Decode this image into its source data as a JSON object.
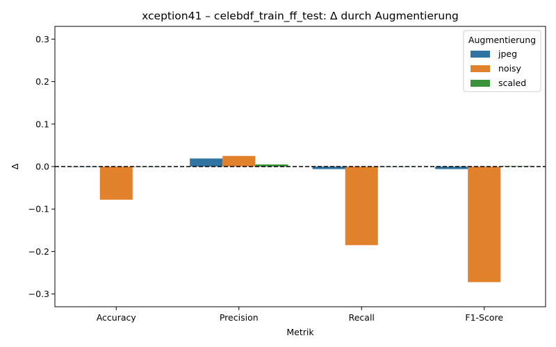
{
  "chart_data": {
    "type": "bar",
    "title": "xception41 – celebdf_train_ff_test: Δ durch Augmentierung",
    "xlabel": "Metrik",
    "ylabel": "Δ",
    "ylim": [
      -0.33,
      0.33
    ],
    "yticks": [
      -0.3,
      -0.2,
      -0.1,
      0.0,
      0.1,
      0.2,
      0.3
    ],
    "ytick_labels": [
      "−0.3",
      "−0.2",
      "−0.1",
      "0.0",
      "0.1",
      "0.2",
      "0.3"
    ],
    "categories": [
      "Accuracy",
      "Precision",
      "Recall",
      "F1-Score"
    ],
    "legend_title": "Augmentierung",
    "legend_position": "top-right",
    "reference_line": 0,
    "series": [
      {
        "name": "jpeg",
        "color": "#3274a1",
        "values": [
          0.0,
          0.019,
          -0.006,
          -0.006
        ]
      },
      {
        "name": "noisy",
        "color": "#e1812c",
        "values": [
          -0.078,
          0.025,
          -0.185,
          -0.272
        ]
      },
      {
        "name": "scaled",
        "color": "#3a923a",
        "values": [
          0.0,
          0.005,
          0.0,
          0.001
        ]
      }
    ]
  }
}
